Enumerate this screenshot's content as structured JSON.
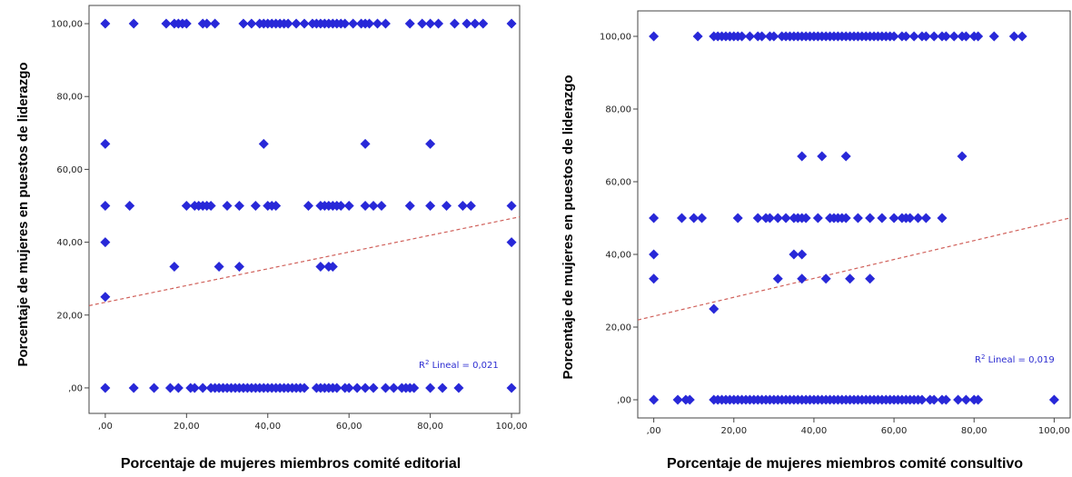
{
  "chart_data": [
    {
      "type": "scatter",
      "xlabel": "Porcentaje de mujeres miembros comité editorial",
      "ylabel": "Porcentaje de mujeres en puestos de liderazgo",
      "xlim": [
        -4,
        102
      ],
      "ylim": [
        -7,
        105
      ],
      "xticks": [
        0,
        20,
        40,
        60,
        80,
        100
      ],
      "yticks": [
        0,
        20,
        40,
        60,
        80,
        100
      ],
      "xtick_labels": [
        ",00",
        "20,00",
        "40,00",
        "60,00",
        "80,00",
        "100,00"
      ],
      "ytick_labels": [
        ",00",
        "20,00",
        "40,00",
        "60,00",
        "80,00",
        "100,00"
      ],
      "grid": false,
      "marker_color": "#2828d8",
      "fit_line": {
        "intercept": 23.5,
        "slope": 0.23,
        "color": "#d0605a",
        "style": "dashed"
      },
      "annotation": {
        "prefix": "R",
        "superscript": "2",
        "text": " Lineal = 0,021"
      },
      "points": [
        [
          0,
          100
        ],
        [
          7,
          100
        ],
        [
          15,
          100
        ],
        [
          17,
          100
        ],
        [
          18,
          100
        ],
        [
          19,
          100
        ],
        [
          20,
          100
        ],
        [
          24,
          100
        ],
        [
          25,
          100
        ],
        [
          27,
          100
        ],
        [
          34,
          100
        ],
        [
          36,
          100
        ],
        [
          38,
          100
        ],
        [
          39,
          100
        ],
        [
          40,
          100
        ],
        [
          41,
          100
        ],
        [
          42,
          100
        ],
        [
          43,
          100
        ],
        [
          44,
          100
        ],
        [
          45,
          100
        ],
        [
          47,
          100
        ],
        [
          49,
          100
        ],
        [
          51,
          100
        ],
        [
          52,
          100
        ],
        [
          53,
          100
        ],
        [
          54,
          100
        ],
        [
          55,
          100
        ],
        [
          56,
          100
        ],
        [
          57,
          100
        ],
        [
          58,
          100
        ],
        [
          59,
          100
        ],
        [
          61,
          100
        ],
        [
          63,
          100
        ],
        [
          64,
          100
        ],
        [
          65,
          100
        ],
        [
          67,
          100
        ],
        [
          69,
          100
        ],
        [
          75,
          100
        ],
        [
          78,
          100
        ],
        [
          80,
          100
        ],
        [
          82,
          100
        ],
        [
          86,
          100
        ],
        [
          89,
          100
        ],
        [
          91,
          100
        ],
        [
          93,
          100
        ],
        [
          100,
          100
        ],
        [
          0,
          67
        ],
        [
          39,
          67
        ],
        [
          64,
          67
        ],
        [
          80,
          67
        ],
        [
          0,
          50
        ],
        [
          6,
          50
        ],
        [
          20,
          50
        ],
        [
          22,
          50
        ],
        [
          23,
          50
        ],
        [
          24,
          50
        ],
        [
          25,
          50
        ],
        [
          26,
          50
        ],
        [
          30,
          50
        ],
        [
          33,
          50
        ],
        [
          37,
          50
        ],
        [
          40,
          50
        ],
        [
          41,
          50
        ],
        [
          42,
          50
        ],
        [
          50,
          50
        ],
        [
          53,
          50
        ],
        [
          54,
          50
        ],
        [
          55,
          50
        ],
        [
          56,
          50
        ],
        [
          57,
          50
        ],
        [
          58,
          50
        ],
        [
          60,
          50
        ],
        [
          64,
          50
        ],
        [
          66,
          50
        ],
        [
          68,
          50
        ],
        [
          75,
          50
        ],
        [
          80,
          50
        ],
        [
          84,
          50
        ],
        [
          88,
          50
        ],
        [
          90,
          50
        ],
        [
          100,
          50
        ],
        [
          0,
          40
        ],
        [
          100,
          40
        ],
        [
          17,
          33.3
        ],
        [
          28,
          33.3
        ],
        [
          33,
          33.3
        ],
        [
          53,
          33.3
        ],
        [
          55,
          33.3
        ],
        [
          56,
          33.3
        ],
        [
          0,
          25
        ],
        [
          0,
          0
        ],
        [
          7,
          0
        ],
        [
          12,
          0
        ],
        [
          16,
          0
        ],
        [
          18,
          0
        ],
        [
          21,
          0
        ],
        [
          22,
          0
        ],
        [
          24,
          0
        ],
        [
          26,
          0
        ],
        [
          27,
          0
        ],
        [
          28,
          0
        ],
        [
          29,
          0
        ],
        [
          30,
          0
        ],
        [
          31,
          0
        ],
        [
          32,
          0
        ],
        [
          33,
          0
        ],
        [
          34,
          0
        ],
        [
          35,
          0
        ],
        [
          36,
          0
        ],
        [
          37,
          0
        ],
        [
          38,
          0
        ],
        [
          39,
          0
        ],
        [
          40,
          0
        ],
        [
          41,
          0
        ],
        [
          42,
          0
        ],
        [
          43,
          0
        ],
        [
          44,
          0
        ],
        [
          45,
          0
        ],
        [
          46,
          0
        ],
        [
          47,
          0
        ],
        [
          48,
          0
        ],
        [
          49,
          0
        ],
        [
          52,
          0
        ],
        [
          53,
          0
        ],
        [
          54,
          0
        ],
        [
          55,
          0
        ],
        [
          56,
          0
        ],
        [
          57,
          0
        ],
        [
          59,
          0
        ],
        [
          60,
          0
        ],
        [
          62,
          0
        ],
        [
          64,
          0
        ],
        [
          66,
          0
        ],
        [
          69,
          0
        ],
        [
          71,
          0
        ],
        [
          73,
          0
        ],
        [
          74,
          0
        ],
        [
          75,
          0
        ],
        [
          76,
          0
        ],
        [
          80,
          0
        ],
        [
          83,
          0
        ],
        [
          87,
          0
        ],
        [
          100,
          0
        ]
      ]
    },
    {
      "type": "scatter",
      "xlabel": "Porcentaje de mujeres miembros comité consultivo",
      "ylabel": "Porcentaje de mujeres en puestos de liderazgo",
      "xlim": [
        -4,
        104
      ],
      "ylim": [
        -5,
        107
      ],
      "xticks": [
        0,
        20,
        40,
        60,
        80,
        100
      ],
      "yticks": [
        0,
        20,
        40,
        60,
        80,
        100
      ],
      "xtick_labels": [
        ",00",
        "20,00",
        "40,00",
        "60,00",
        "80,00",
        "100,00"
      ],
      "ytick_labels": [
        ",00",
        "20,00",
        "40,00",
        "60,00",
        "80,00",
        "100,00"
      ],
      "grid": false,
      "marker_color": "#2828d8",
      "fit_line": {
        "intercept": 23,
        "slope": 0.26,
        "color": "#d0605a",
        "style": "dashed"
      },
      "annotation": {
        "prefix": "R",
        "superscript": "2",
        "text": " Lineal = 0,019"
      },
      "points": [
        [
          0,
          100
        ],
        [
          11,
          100
        ],
        [
          15,
          100
        ],
        [
          16,
          100
        ],
        [
          17,
          100
        ],
        [
          18,
          100
        ],
        [
          19,
          100
        ],
        [
          20,
          100
        ],
        [
          21,
          100
        ],
        [
          22,
          100
        ],
        [
          24,
          100
        ],
        [
          26,
          100
        ],
        [
          27,
          100
        ],
        [
          29,
          100
        ],
        [
          30,
          100
        ],
        [
          32,
          100
        ],
        [
          33,
          100
        ],
        [
          34,
          100
        ],
        [
          35,
          100
        ],
        [
          36,
          100
        ],
        [
          37,
          100
        ],
        [
          38,
          100
        ],
        [
          39,
          100
        ],
        [
          40,
          100
        ],
        [
          41,
          100
        ],
        [
          42,
          100
        ],
        [
          43,
          100
        ],
        [
          44,
          100
        ],
        [
          45,
          100
        ],
        [
          46,
          100
        ],
        [
          47,
          100
        ],
        [
          48,
          100
        ],
        [
          49,
          100
        ],
        [
          50,
          100
        ],
        [
          51,
          100
        ],
        [
          52,
          100
        ],
        [
          53,
          100
        ],
        [
          54,
          100
        ],
        [
          55,
          100
        ],
        [
          56,
          100
        ],
        [
          57,
          100
        ],
        [
          58,
          100
        ],
        [
          59,
          100
        ],
        [
          60,
          100
        ],
        [
          62,
          100
        ],
        [
          63,
          100
        ],
        [
          65,
          100
        ],
        [
          67,
          100
        ],
        [
          68,
          100
        ],
        [
          70,
          100
        ],
        [
          72,
          100
        ],
        [
          73,
          100
        ],
        [
          75,
          100
        ],
        [
          77,
          100
        ],
        [
          78,
          100
        ],
        [
          80,
          100
        ],
        [
          81,
          100
        ],
        [
          85,
          100
        ],
        [
          90,
          100
        ],
        [
          92,
          100
        ],
        [
          37,
          67
        ],
        [
          42,
          67
        ],
        [
          48,
          67
        ],
        [
          77,
          67
        ],
        [
          0,
          50
        ],
        [
          7,
          50
        ],
        [
          10,
          50
        ],
        [
          12,
          50
        ],
        [
          21,
          50
        ],
        [
          26,
          50
        ],
        [
          28,
          50
        ],
        [
          29,
          50
        ],
        [
          31,
          50
        ],
        [
          33,
          50
        ],
        [
          35,
          50
        ],
        [
          36,
          50
        ],
        [
          37,
          50
        ],
        [
          38,
          50
        ],
        [
          41,
          50
        ],
        [
          44,
          50
        ],
        [
          45,
          50
        ],
        [
          46,
          50
        ],
        [
          47,
          50
        ],
        [
          48,
          50
        ],
        [
          51,
          50
        ],
        [
          54,
          50
        ],
        [
          57,
          50
        ],
        [
          60,
          50
        ],
        [
          62,
          50
        ],
        [
          63,
          50
        ],
        [
          64,
          50
        ],
        [
          66,
          50
        ],
        [
          68,
          50
        ],
        [
          72,
          50
        ],
        [
          0,
          40
        ],
        [
          35,
          40
        ],
        [
          37,
          40
        ],
        [
          0,
          33.3
        ],
        [
          31,
          33.3
        ],
        [
          37,
          33.3
        ],
        [
          43,
          33.3
        ],
        [
          49,
          33.3
        ],
        [
          54,
          33.3
        ],
        [
          15,
          25
        ],
        [
          0,
          0
        ],
        [
          6,
          0
        ],
        [
          8,
          0
        ],
        [
          9,
          0
        ],
        [
          15,
          0
        ],
        [
          16,
          0
        ],
        [
          17,
          0
        ],
        [
          18,
          0
        ],
        [
          19,
          0
        ],
        [
          20,
          0
        ],
        [
          21,
          0
        ],
        [
          22,
          0
        ],
        [
          23,
          0
        ],
        [
          24,
          0
        ],
        [
          25,
          0
        ],
        [
          26,
          0
        ],
        [
          27,
          0
        ],
        [
          28,
          0
        ],
        [
          29,
          0
        ],
        [
          30,
          0
        ],
        [
          31,
          0
        ],
        [
          32,
          0
        ],
        [
          33,
          0
        ],
        [
          34,
          0
        ],
        [
          35,
          0
        ],
        [
          36,
          0
        ],
        [
          37,
          0
        ],
        [
          38,
          0
        ],
        [
          39,
          0
        ],
        [
          40,
          0
        ],
        [
          41,
          0
        ],
        [
          42,
          0
        ],
        [
          43,
          0
        ],
        [
          44,
          0
        ],
        [
          45,
          0
        ],
        [
          46,
          0
        ],
        [
          47,
          0
        ],
        [
          48,
          0
        ],
        [
          49,
          0
        ],
        [
          50,
          0
        ],
        [
          51,
          0
        ],
        [
          52,
          0
        ],
        [
          53,
          0
        ],
        [
          54,
          0
        ],
        [
          55,
          0
        ],
        [
          56,
          0
        ],
        [
          57,
          0
        ],
        [
          58,
          0
        ],
        [
          59,
          0
        ],
        [
          60,
          0
        ],
        [
          61,
          0
        ],
        [
          62,
          0
        ],
        [
          63,
          0
        ],
        [
          64,
          0
        ],
        [
          65,
          0
        ],
        [
          66,
          0
        ],
        [
          67,
          0
        ],
        [
          69,
          0
        ],
        [
          70,
          0
        ],
        [
          72,
          0
        ],
        [
          73,
          0
        ],
        [
          76,
          0
        ],
        [
          78,
          0
        ],
        [
          80,
          0
        ],
        [
          81,
          0
        ],
        [
          100,
          0
        ]
      ]
    }
  ]
}
